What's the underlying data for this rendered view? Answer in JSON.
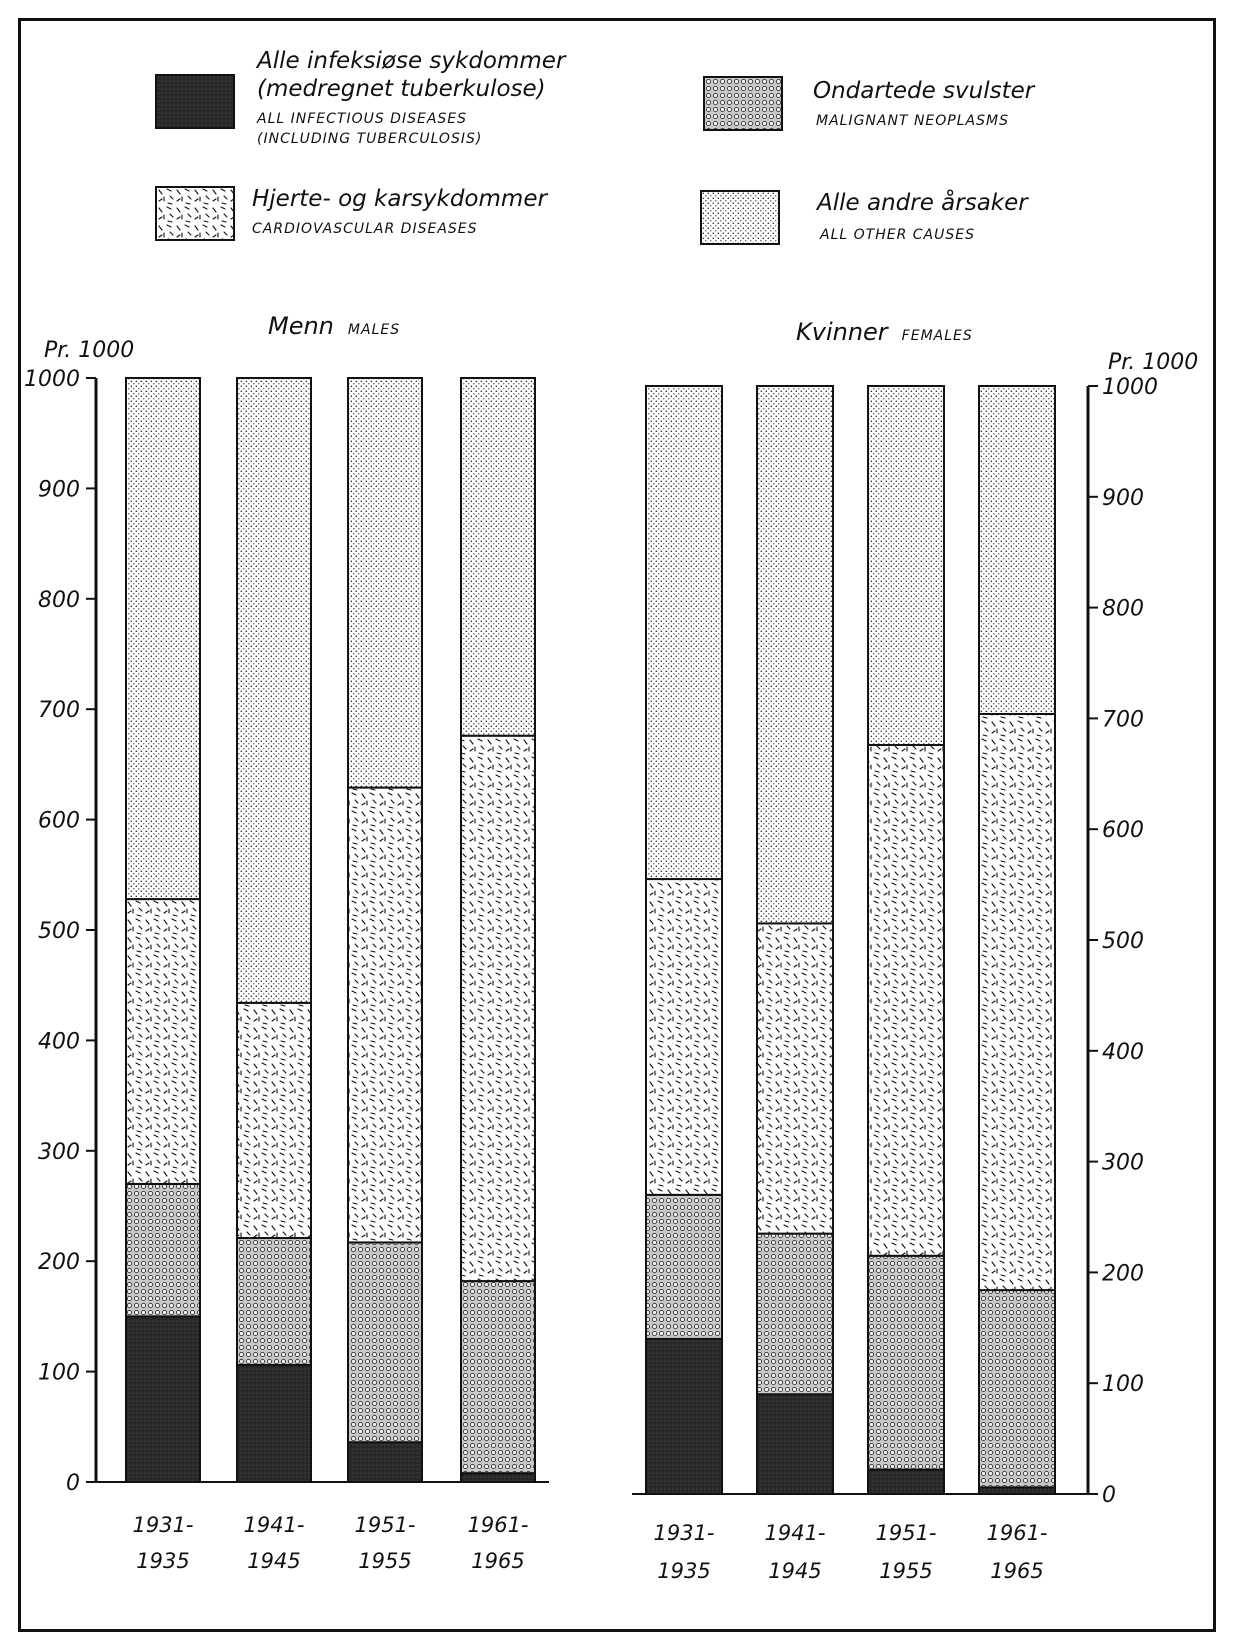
{
  "legend": {
    "infectious": {
      "main1": "Alle infeksiøse sykdommer",
      "main2": "(medregnet tuberkulose)",
      "sub1": "ALL INFECTIOUS DISEASES",
      "sub2": "(INCLUDING TUBERCULOSIS)"
    },
    "malignant": {
      "main": "Ondartede svulster",
      "sub": "MALIGNANT NEOPLASMS"
    },
    "cardio": {
      "main": "Hjerte- og karsykdommer",
      "sub": "CARDIOVASCULAR DISEASES"
    },
    "other": {
      "main": "Alle andre årsaker",
      "sub": "ALL OTHER CAUSES"
    }
  },
  "panels": {
    "males": {
      "title": "Menn",
      "title_en": "MALES"
    },
    "females": {
      "title": "Kvinner",
      "title_en": "FEMALES"
    }
  },
  "unit_left": "Pr. 1000",
  "unit_right": "Pr. 1000",
  "chart_data": [
    {
      "type": "bar",
      "stacked": true,
      "panel": "males",
      "title": "Menn MALES",
      "ylabel": "Pr. 1000",
      "ylim": [
        0,
        1000
      ],
      "yticks": [
        "0",
        "100",
        "200",
        "300",
        "400",
        "500",
        "600",
        "700",
        "800",
        "900",
        "1000"
      ],
      "categories": [
        [
          "1931-",
          "1935"
        ],
        [
          "1941-",
          "1945"
        ],
        [
          "1951-",
          "1955"
        ],
        [
          "1961-",
          "1965"
        ]
      ],
      "series": [
        {
          "name": "ALL INFECTIOUS DISEASES (INCLUDING TUBERCULOSIS)",
          "values": [
            150,
            106,
            36,
            8
          ]
        },
        {
          "name": "MALIGNANT NEOPLASMS",
          "values": [
            120,
            115,
            181,
            174
          ]
        },
        {
          "name": "CARDIOVASCULAR DISEASES",
          "values": [
            258,
            213,
            412,
            494
          ]
        },
        {
          "name": "ALL OTHER CAUSES",
          "values": [
            472,
            566,
            371,
            324
          ]
        }
      ],
      "pattern": {
        "ALL INFECTIOUS DISEASES (INCLUDING TUBERCULOSIS)": "dark",
        "MALIGNANT NEOPLASMS": "circles",
        "CARDIOVASCULAR DISEASES": "dashes",
        "ALL OTHER CAUSES": "dots"
      }
    },
    {
      "type": "bar",
      "stacked": true,
      "panel": "females",
      "title": "Kvinner FEMALES",
      "ylabel": "Pr. 1000",
      "ylim": [
        0,
        1000
      ],
      "yticks": [
        "0",
        "100",
        "200",
        "300",
        "400",
        "500",
        "600",
        "700",
        "800",
        "900",
        "1000"
      ],
      "categories": [
        [
          "1931-",
          "1935"
        ],
        [
          "1941-",
          "1945"
        ],
        [
          "1951-",
          "1955"
        ],
        [
          "1961-",
          "1965"
        ]
      ],
      "series": [
        {
          "name": "ALL INFECTIOUS DISEASES (INCLUDING TUBERCULOSIS)",
          "values": [
            140,
            90,
            22,
            6
          ]
        },
        {
          "name": "MALIGNANT NEOPLASMS",
          "values": [
            130,
            145,
            193,
            178
          ]
        },
        {
          "name": "CARDIOVASCULAR DISEASES",
          "values": [
            285,
            280,
            461,
            520
          ]
        },
        {
          "name": "ALL OTHER CAUSES",
          "values": [
            445,
            485,
            324,
            296
          ]
        }
      ],
      "pattern": {
        "ALL INFECTIOUS DISEASES (INCLUDING TUBERCULOSIS)": "dark",
        "MALIGNANT NEOPLASMS": "circles",
        "CARDIOVASCULAR DISEASES": "dashes",
        "ALL OTHER CAUSES": "dots"
      }
    }
  ]
}
